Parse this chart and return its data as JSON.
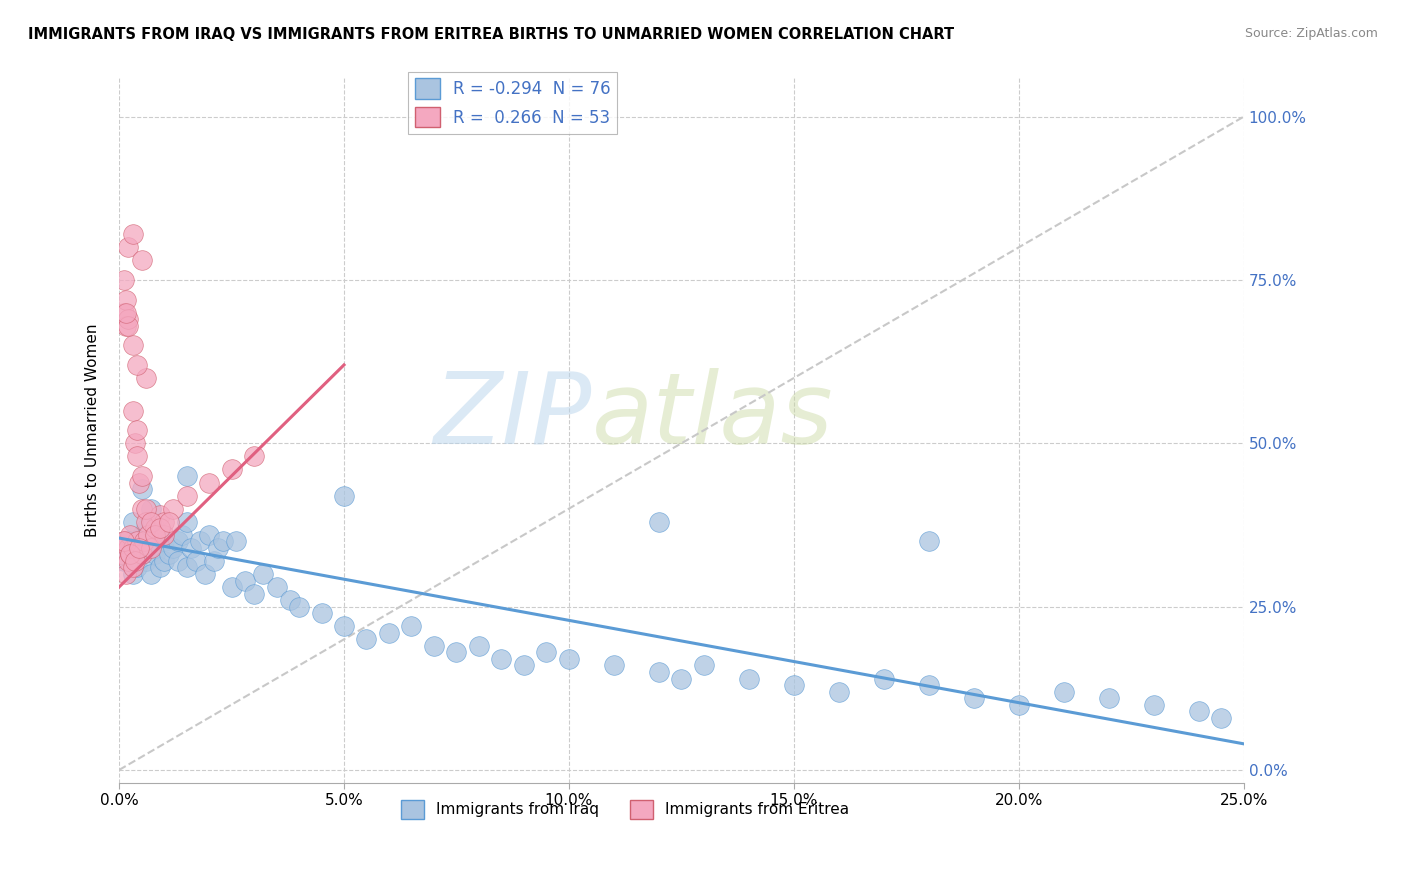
{
  "title": "IMMIGRANTS FROM IRAQ VS IMMIGRANTS FROM ERITREA BIRTHS TO UNMARRIED WOMEN CORRELATION CHART",
  "source": "Source: ZipAtlas.com",
  "ylabel": "Births to Unmarried Women",
  "yticks_labels": [
    "0.0%",
    "25.0%",
    "50.0%",
    "75.0%",
    "100.0%"
  ],
  "ytick_values": [
    0.0,
    0.25,
    0.5,
    0.75,
    1.0
  ],
  "xticks_labels": [
    "0.0%",
    "5.0%",
    "10.0%",
    "15.0%",
    "20.0%",
    "25.0%"
  ],
  "xtick_values": [
    0.0,
    0.05,
    0.1,
    0.15,
    0.2,
    0.25
  ],
  "xlim": [
    0,
    0.25
  ],
  "ylim": [
    -0.02,
    1.06
  ],
  "iraq_color": "#aac4e0",
  "eritrea_color": "#f4a8c0",
  "iraq_line_color": "#5b9bd5",
  "eritrea_line_color": "#e06080",
  "diagonal_color": "#c8c8c8",
  "legend_iraq_label": "R = -0.294  N = 76",
  "legend_eritrea_label": "R =  0.266  N = 53",
  "watermark_zip": "ZIP",
  "watermark_atlas": "atlas",
  "iraq_scatter_x": [
    0.001,
    0.002,
    0.003,
    0.003,
    0.004,
    0.004,
    0.005,
    0.005,
    0.006,
    0.006,
    0.007,
    0.007,
    0.008,
    0.008,
    0.009,
    0.009,
    0.01,
    0.01,
    0.011,
    0.012,
    0.013,
    0.013,
    0.014,
    0.015,
    0.015,
    0.016,
    0.017,
    0.018,
    0.019,
    0.02,
    0.021,
    0.022,
    0.023,
    0.025,
    0.026,
    0.028,
    0.03,
    0.032,
    0.035,
    0.038,
    0.04,
    0.045,
    0.05,
    0.055,
    0.06,
    0.065,
    0.07,
    0.075,
    0.08,
    0.085,
    0.09,
    0.095,
    0.1,
    0.11,
    0.12,
    0.125,
    0.13,
    0.14,
    0.15,
    0.16,
    0.17,
    0.18,
    0.19,
    0.2,
    0.21,
    0.22,
    0.23,
    0.24,
    0.245,
    0.003,
    0.005,
    0.007,
    0.015,
    0.05,
    0.12,
    0.18
  ],
  "iraq_scatter_y": [
    0.32,
    0.35,
    0.3,
    0.33,
    0.31,
    0.34,
    0.36,
    0.33,
    0.37,
    0.32,
    0.35,
    0.3,
    0.34,
    0.33,
    0.36,
    0.31,
    0.35,
    0.32,
    0.33,
    0.34,
    0.35,
    0.32,
    0.36,
    0.31,
    0.38,
    0.34,
    0.32,
    0.35,
    0.3,
    0.36,
    0.32,
    0.34,
    0.35,
    0.28,
    0.35,
    0.29,
    0.27,
    0.3,
    0.28,
    0.26,
    0.25,
    0.24,
    0.22,
    0.2,
    0.21,
    0.22,
    0.19,
    0.18,
    0.19,
    0.17,
    0.16,
    0.18,
    0.17,
    0.16,
    0.15,
    0.14,
    0.16,
    0.14,
    0.13,
    0.12,
    0.14,
    0.13,
    0.11,
    0.1,
    0.12,
    0.11,
    0.1,
    0.09,
    0.08,
    0.38,
    0.43,
    0.4,
    0.45,
    0.42,
    0.38,
    0.35
  ],
  "eritrea_scatter_x": [
    0.0005,
    0.001,
    0.001,
    0.0015,
    0.0015,
    0.002,
    0.002,
    0.0025,
    0.0025,
    0.003,
    0.003,
    0.0035,
    0.004,
    0.004,
    0.0045,
    0.005,
    0.005,
    0.0055,
    0.006,
    0.0065,
    0.007,
    0.008,
    0.009,
    0.01,
    0.01,
    0.012,
    0.015,
    0.02,
    0.025,
    0.03,
    0.001,
    0.0015,
    0.002,
    0.003,
    0.004,
    0.005,
    0.006,
    0.007,
    0.008,
    0.009,
    0.011,
    0.002,
    0.003,
    0.005,
    0.006,
    0.004,
    0.003,
    0.002,
    0.0015,
    0.001,
    0.0025,
    0.0035,
    0.0045
  ],
  "eritrea_scatter_y": [
    0.33,
    0.35,
    0.7,
    0.3,
    0.68,
    0.34,
    0.32,
    0.33,
    0.36,
    0.31,
    0.34,
    0.5,
    0.48,
    0.35,
    0.44,
    0.33,
    0.4,
    0.35,
    0.38,
    0.36,
    0.34,
    0.37,
    0.39,
    0.38,
    0.36,
    0.4,
    0.42,
    0.44,
    0.46,
    0.48,
    0.75,
    0.72,
    0.69,
    0.55,
    0.52,
    0.45,
    0.4,
    0.38,
    0.36,
    0.37,
    0.38,
    0.8,
    0.82,
    0.78,
    0.6,
    0.62,
    0.65,
    0.68,
    0.7,
    0.35,
    0.33,
    0.32,
    0.34
  ],
  "iraq_trend_x0": 0.0,
  "iraq_trend_x1": 0.25,
  "iraq_trend_y0": 0.355,
  "iraq_trend_y1": 0.04,
  "eritrea_trend_x0": 0.0,
  "eritrea_trend_x1": 0.05,
  "eritrea_trend_y0": 0.28,
  "eritrea_trend_y1": 0.62
}
